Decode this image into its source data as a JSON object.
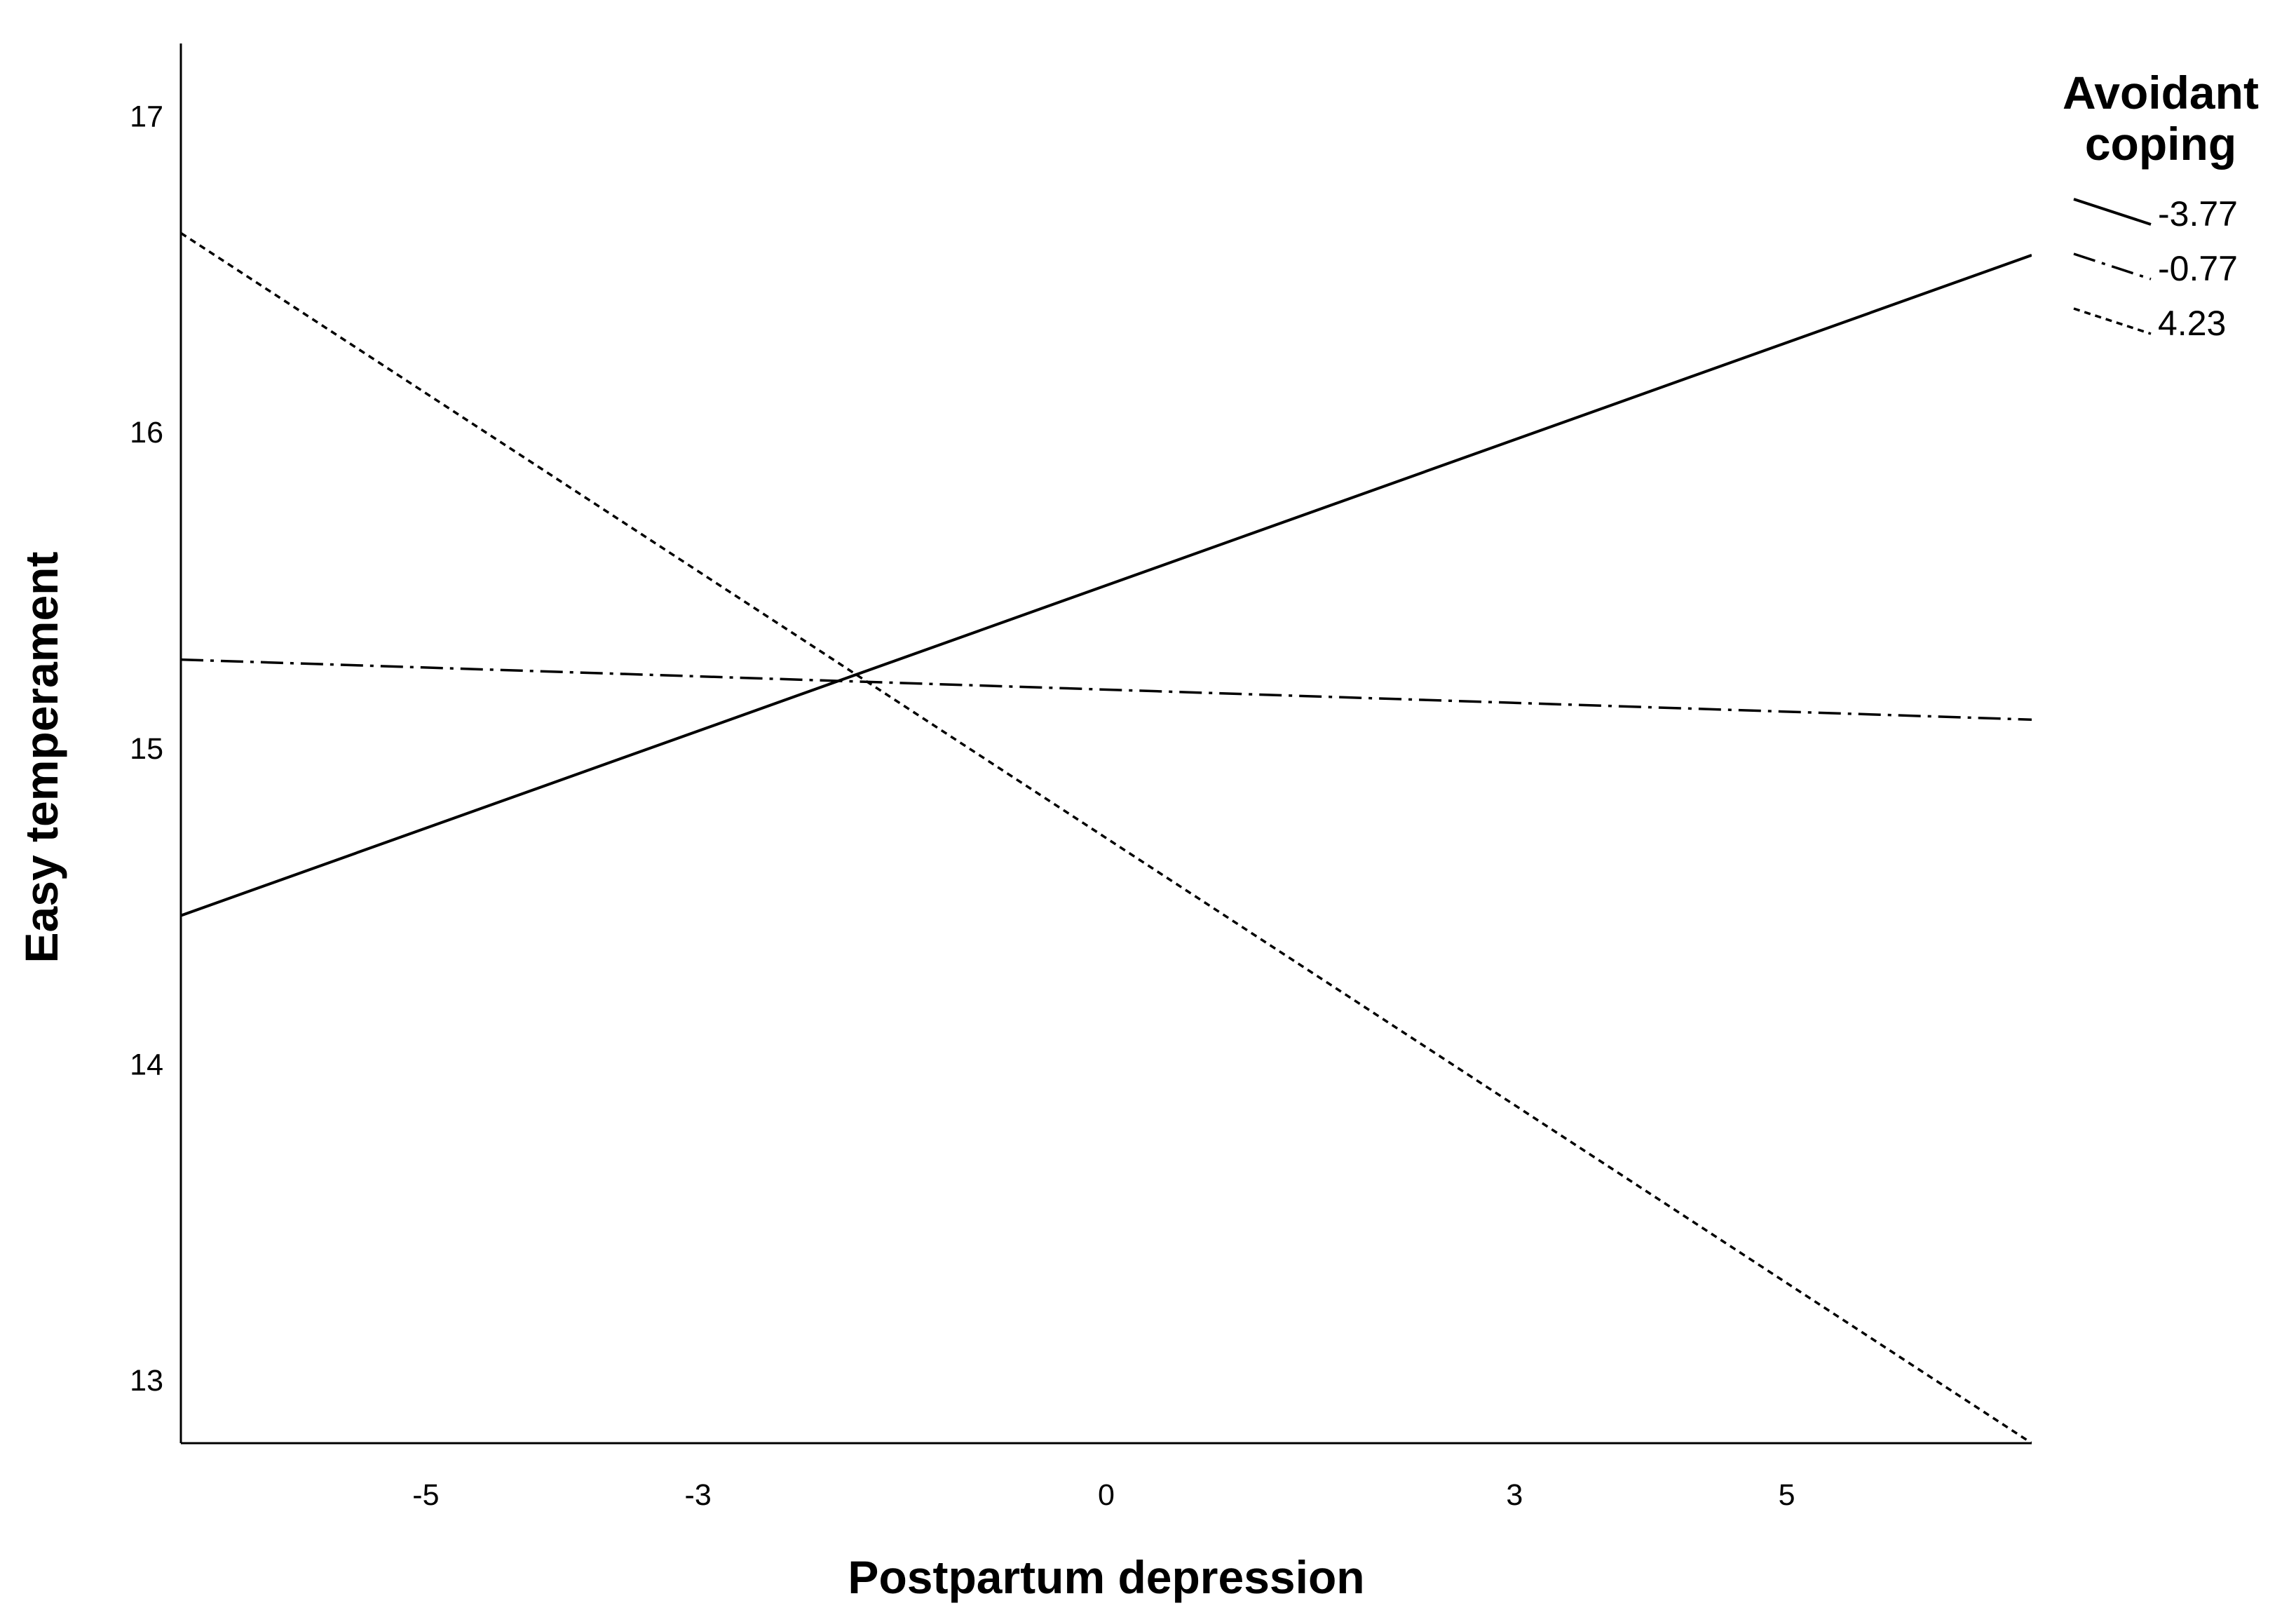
{
  "chart_data": {
    "type": "line",
    "title": "",
    "xlabel": "Postpartum depression",
    "ylabel": "Easy temperament",
    "xlim": [
      -6.8,
      6.8
    ],
    "ylim": [
      12.8,
      17.23
    ],
    "x_ticks": [
      -5,
      -3,
      0,
      3,
      5
    ],
    "y_ticks": [
      13,
      14,
      15,
      16,
      17
    ],
    "grid": false,
    "legend": {
      "title": "Avoidant coping",
      "title_lines": [
        "Avoidant",
        "coping"
      ],
      "placement": "top-right"
    },
    "series": [
      {
        "name": "-3.77",
        "style": "solid",
        "x": [
          -6.8,
          6.8
        ],
        "y": [
          14.47,
          16.56
        ]
      },
      {
        "name": "-0.77",
        "style": "dash-dot",
        "x": [
          -6.8,
          6.8
        ],
        "y": [
          15.28,
          15.09
        ]
      },
      {
        "name": "4.23",
        "style": "dotted",
        "x": [
          -6.8,
          6.8
        ],
        "y": [
          16.63,
          12.8
        ]
      }
    ],
    "colors": {
      "line": "#000000",
      "axis": "#000000",
      "background": "#ffffff"
    }
  }
}
